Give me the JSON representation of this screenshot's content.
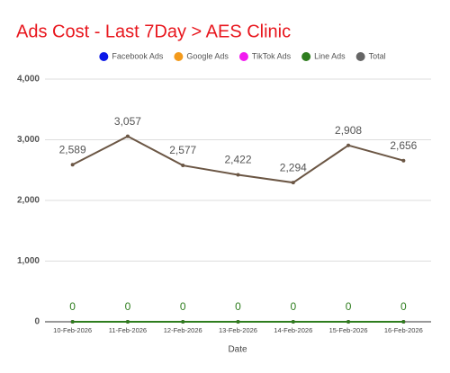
{
  "chart_data": {
    "type": "line",
    "title": "Ads Cost - Last 7Day > AES Clinic",
    "title_color": "#e8161d",
    "x_label": "Date",
    "categories": [
      "10-Feb-2026",
      "11-Feb-2026",
      "12-Feb-2026",
      "13-Feb-2026",
      "14-Feb-2026",
      "15-Feb-2026",
      "16-Feb-2026"
    ],
    "series": [
      {
        "name": "Facebook Ads",
        "color": "#0b18e8",
        "values": [
          0,
          0,
          0,
          0,
          0,
          0,
          0
        ],
        "labels": false
      },
      {
        "name": "Google Ads",
        "color": "#f39a1c",
        "values": [
          0,
          0,
          0,
          0,
          0,
          0,
          0
        ],
        "labels": false
      },
      {
        "name": "TikTok Ads",
        "color": "#f21bf0",
        "values": [
          0,
          0,
          0,
          0,
          0,
          0,
          0
        ],
        "labels": false
      },
      {
        "name": "Line Ads",
        "color": "#2e7d1e",
        "values": [
          0,
          0,
          0,
          0,
          0,
          0,
          0
        ],
        "labels": true
      },
      {
        "name": "Total",
        "color": "#6b5644",
        "legend_color": "#666666",
        "values": [
          2589,
          3057,
          2577,
          2422,
          2294,
          2908,
          2656
        ],
        "value_labels": [
          "2,589",
          "3,057",
          "2,577",
          "2,422",
          "2,294",
          "2,908",
          "2,656"
        ],
        "labels": true
      }
    ],
    "ylim": [
      0,
      4000
    ],
    "yticks": [
      0,
      {
        "value": 1000,
        "label": "1,000"
      },
      {
        "value": 2000,
        "label": "2,000"
      },
      {
        "value": 3000,
        "label": "3,000"
      },
      {
        "value": 4000,
        "label": "4,000"
      }
    ],
    "grid": true,
    "legend": "top"
  }
}
